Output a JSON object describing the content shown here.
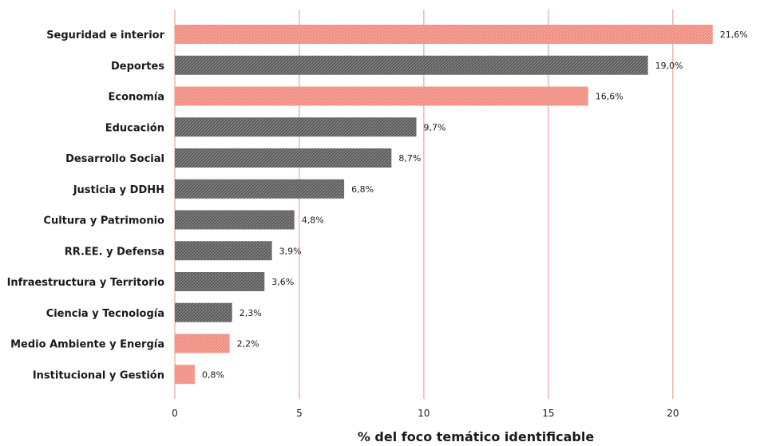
{
  "chart_data": {
    "type": "bar",
    "orientation": "horizontal",
    "title": "",
    "xlabel": "% del foco temático identificable",
    "ylabel": "",
    "xlim": [
      0,
      23.5
    ],
    "xticks": [
      0,
      5,
      10,
      15,
      20
    ],
    "grid": "vertical lines at ticks",
    "legend": "none",
    "categories": [
      "Seguridad e interior",
      "Deportes",
      "Economía",
      "Educación",
      "Desarrollo Social",
      "Justicia y DDHH",
      "Cultura y Patrimonio",
      "RR.EE. y Defensa",
      "Infraestructura y Territorio",
      "Ciencia y Tecnología",
      "Medio Ambiente y Energía",
      "Institucional y Gestión"
    ],
    "values": [
      21.6,
      19.0,
      16.6,
      9.7,
      8.7,
      6.8,
      4.8,
      3.9,
      3.6,
      2.3,
      2.2,
      0.8
    ],
    "value_labels": [
      "21,6%",
      "19,0%",
      "16,6%",
      "9,7%",
      "8,7%",
      "6,8%",
      "4,8%",
      "3,9%",
      "3,6%",
      "2,3%",
      "2,2%",
      "0,8%"
    ],
    "bar_colors": [
      "coral",
      "gray",
      "coral",
      "gray",
      "gray",
      "gray",
      "gray",
      "gray",
      "gray",
      "gray",
      "coral",
      "coral"
    ],
    "colors": {
      "coral": "#f08a7c",
      "coral_pattern": "#f6b3a9",
      "gray": "#5c5c5c",
      "gray_pattern": "#8e8e8e",
      "gridline": "#e8948a",
      "text": "#1a1a1a"
    }
  }
}
